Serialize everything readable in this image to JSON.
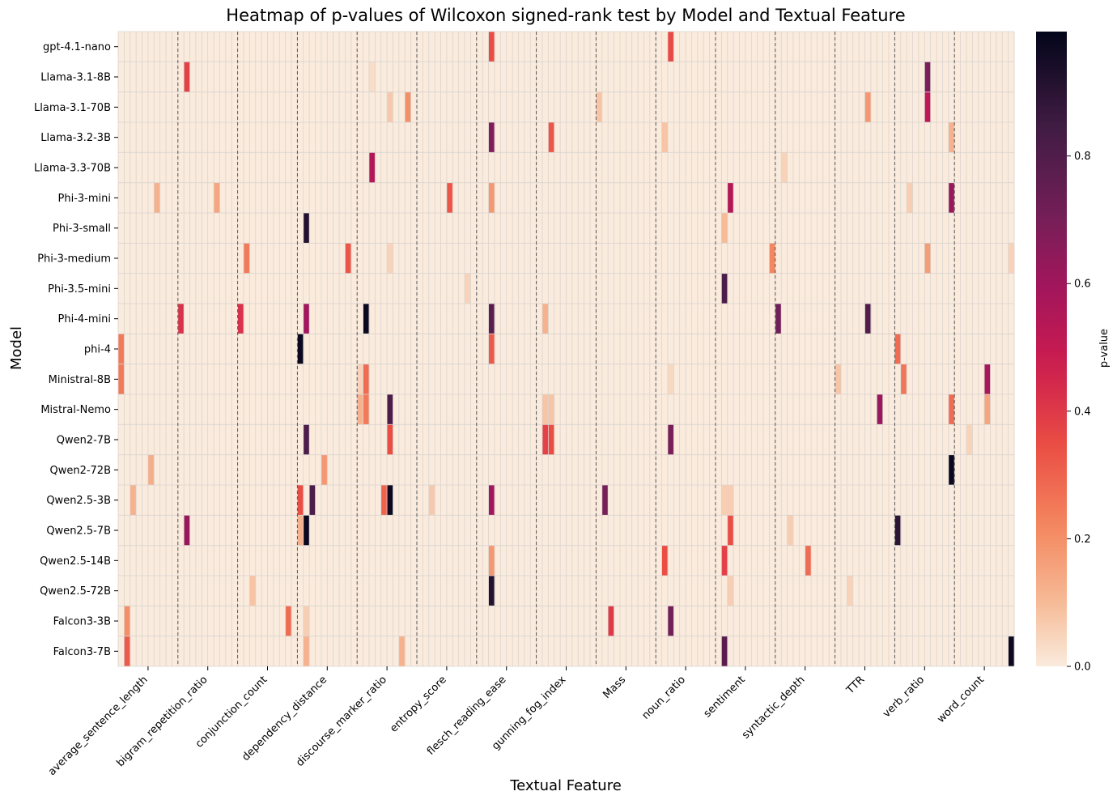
{
  "chart_data": {
    "type": "heatmap",
    "title": "Heatmap of p-values of Wilcoxon signed-rank test by Model and Textual Feature",
    "xlabel": "Textual Feature",
    "ylabel": "Model",
    "colorbar_label": "p-value",
    "colorbar_ticks": [
      0.0,
      0.2,
      0.4,
      0.6,
      0.8
    ],
    "colorbar_tick_labels": [
      "0.0",
      "0.2",
      "0.4",
      "0.6",
      "0.8"
    ],
    "value_range": [
      0,
      1
    ],
    "colormap": "rocket_r",
    "rows": [
      "gpt-4.1-nano",
      "Llama-3.1-8B",
      "Llama-3.1-70B",
      "Llama-3.2-3B",
      "Llama-3.3-70B",
      "Phi-3-mini",
      "Phi-3-small",
      "Phi-3-medium",
      "Phi-3.5-mini",
      "Phi-4-mini",
      "phi-4",
      "Ministral-8B",
      "Mistral-Nemo",
      "Qwen2-7B",
      "Qwen2-72B",
      "Qwen2.5-3B",
      "Qwen2.5-7B",
      "Qwen2.5-14B",
      "Qwen2.5-72B",
      "Falcon3-3B",
      "Falcon3-7B"
    ],
    "feature_groups": [
      "average_sentence_length",
      "bigram_repetition_ratio",
      "conjunction_count",
      "dependency_distance",
      "discourse_marker_ratio",
      "entropy_score",
      "flesch_reading_ease",
      "gunning_fog_index",
      "Mass",
      "noun_ratio",
      "sentiment",
      "syntactic_depth",
      "TTR",
      "verb_ratio",
      "word_count"
    ],
    "columns_per_group": 10,
    "grid": true,
    "group_separators": "dashed",
    "background_value": 0.0,
    "cells": [
      {
        "row": 0,
        "col": 62,
        "value": 0.35
      },
      {
        "row": 0,
        "col": 92,
        "value": 0.36
      },
      {
        "row": 1,
        "col": 11,
        "value": 0.38
      },
      {
        "row": 1,
        "col": 42,
        "value": 0.03
      },
      {
        "row": 1,
        "col": 135,
        "value": 0.7
      },
      {
        "row": 2,
        "col": 45,
        "value": 0.07
      },
      {
        "row": 2,
        "col": 48,
        "value": 0.2
      },
      {
        "row": 2,
        "col": 80,
        "value": 0.08
      },
      {
        "row": 2,
        "col": 125,
        "value": 0.18
      },
      {
        "row": 2,
        "col": 135,
        "value": 0.52
      },
      {
        "row": 3,
        "col": 62,
        "value": 0.68
      },
      {
        "row": 3,
        "col": 72,
        "value": 0.33
      },
      {
        "row": 3,
        "col": 91,
        "value": 0.08
      },
      {
        "row": 3,
        "col": 139,
        "value": 0.12
      },
      {
        "row": 4,
        "col": 42,
        "value": 0.55
      },
      {
        "row": 4,
        "col": 111,
        "value": 0.05
      },
      {
        "row": 5,
        "col": 6,
        "value": 0.12
      },
      {
        "row": 5,
        "col": 16,
        "value": 0.15
      },
      {
        "row": 5,
        "col": 55,
        "value": 0.33
      },
      {
        "row": 5,
        "col": 62,
        "value": 0.18
      },
      {
        "row": 5,
        "col": 102,
        "value": 0.55
      },
      {
        "row": 5,
        "col": 132,
        "value": 0.06
      },
      {
        "row": 5,
        "col": 139,
        "value": 0.62
      },
      {
        "row": 6,
        "col": 31,
        "value": 0.92
      },
      {
        "row": 6,
        "col": 101,
        "value": 0.1
      },
      {
        "row": 7,
        "col": 21,
        "value": 0.25
      },
      {
        "row": 7,
        "col": 38,
        "value": 0.33
      },
      {
        "row": 7,
        "col": 45,
        "value": 0.05
      },
      {
        "row": 7,
        "col": 109,
        "value": 0.22
      },
      {
        "row": 7,
        "col": 135,
        "value": 0.17
      },
      {
        "row": 7,
        "col": 149,
        "value": 0.05
      },
      {
        "row": 8,
        "col": 58,
        "value": 0.05
      },
      {
        "row": 8,
        "col": 101,
        "value": 0.82
      },
      {
        "row": 9,
        "col": 10,
        "value": 0.42
      },
      {
        "row": 9,
        "col": 20,
        "value": 0.42
      },
      {
        "row": 9,
        "col": 31,
        "value": 0.6
      },
      {
        "row": 9,
        "col": 41,
        "value": 0.98
      },
      {
        "row": 9,
        "col": 62,
        "value": 0.78
      },
      {
        "row": 9,
        "col": 71,
        "value": 0.12
      },
      {
        "row": 9,
        "col": 110,
        "value": 0.72
      },
      {
        "row": 9,
        "col": 125,
        "value": 0.8
      },
      {
        "row": 10,
        "col": 0,
        "value": 0.25
      },
      {
        "row": 10,
        "col": 30,
        "value": 0.98
      },
      {
        "row": 10,
        "col": 62,
        "value": 0.32
      },
      {
        "row": 10,
        "col": 130,
        "value": 0.28
      },
      {
        "row": 11,
        "col": 0,
        "value": 0.25
      },
      {
        "row": 11,
        "col": 40,
        "value": 0.05
      },
      {
        "row": 11,
        "col": 41,
        "value": 0.28
      },
      {
        "row": 11,
        "col": 92,
        "value": 0.04
      },
      {
        "row": 11,
        "col": 120,
        "value": 0.08
      },
      {
        "row": 11,
        "col": 131,
        "value": 0.26
      },
      {
        "row": 11,
        "col": 145,
        "value": 0.58
      },
      {
        "row": 12,
        "col": 40,
        "value": 0.12
      },
      {
        "row": 12,
        "col": 41,
        "value": 0.25
      },
      {
        "row": 12,
        "col": 45,
        "value": 0.82
      },
      {
        "row": 12,
        "col": 71,
        "value": 0.08
      },
      {
        "row": 12,
        "col": 72,
        "value": 0.08
      },
      {
        "row": 12,
        "col": 127,
        "value": 0.62
      },
      {
        "row": 12,
        "col": 139,
        "value": 0.28
      },
      {
        "row": 12,
        "col": 145,
        "value": 0.15
      },
      {
        "row": 13,
        "col": 31,
        "value": 0.82
      },
      {
        "row": 13,
        "col": 45,
        "value": 0.35
      },
      {
        "row": 13,
        "col": 71,
        "value": 0.38
      },
      {
        "row": 13,
        "col": 72,
        "value": 0.35
      },
      {
        "row": 13,
        "col": 92,
        "value": 0.7
      },
      {
        "row": 13,
        "col": 142,
        "value": 0.05
      },
      {
        "row": 14,
        "col": 5,
        "value": 0.13
      },
      {
        "row": 14,
        "col": 34,
        "value": 0.18
      },
      {
        "row": 14,
        "col": 139,
        "value": 0.98
      },
      {
        "row": 15,
        "col": 2,
        "value": 0.12
      },
      {
        "row": 15,
        "col": 30,
        "value": 0.35
      },
      {
        "row": 15,
        "col": 32,
        "value": 0.82
      },
      {
        "row": 15,
        "col": 44,
        "value": 0.3
      },
      {
        "row": 15,
        "col": 45,
        "value": 0.98
      },
      {
        "row": 15,
        "col": 52,
        "value": 0.07
      },
      {
        "row": 15,
        "col": 62,
        "value": 0.6
      },
      {
        "row": 15,
        "col": 81,
        "value": 0.7
      },
      {
        "row": 15,
        "col": 101,
        "value": 0.06
      },
      {
        "row": 15,
        "col": 102,
        "value": 0.06
      },
      {
        "row": 16,
        "col": 11,
        "value": 0.62
      },
      {
        "row": 16,
        "col": 30,
        "value": 0.12
      },
      {
        "row": 16,
        "col": 31,
        "value": 0.98
      },
      {
        "row": 16,
        "col": 102,
        "value": 0.35
      },
      {
        "row": 16,
        "col": 112,
        "value": 0.06
      },
      {
        "row": 16,
        "col": 130,
        "value": 0.9
      },
      {
        "row": 17,
        "col": 62,
        "value": 0.18
      },
      {
        "row": 17,
        "col": 91,
        "value": 0.35
      },
      {
        "row": 17,
        "col": 101,
        "value": 0.38
      },
      {
        "row": 17,
        "col": 115,
        "value": 0.28
      },
      {
        "row": 18,
        "col": 22,
        "value": 0.08
      },
      {
        "row": 18,
        "col": 62,
        "value": 0.92
      },
      {
        "row": 18,
        "col": 102,
        "value": 0.06
      },
      {
        "row": 18,
        "col": 122,
        "value": 0.05
      },
      {
        "row": 19,
        "col": 1,
        "value": 0.2
      },
      {
        "row": 19,
        "col": 28,
        "value": 0.28
      },
      {
        "row": 19,
        "col": 31,
        "value": 0.06
      },
      {
        "row": 19,
        "col": 82,
        "value": 0.4
      },
      {
        "row": 19,
        "col": 92,
        "value": 0.72
      },
      {
        "row": 20,
        "col": 1,
        "value": 0.32
      },
      {
        "row": 20,
        "col": 31,
        "value": 0.12
      },
      {
        "row": 20,
        "col": 47,
        "value": 0.12
      },
      {
        "row": 20,
        "col": 101,
        "value": 0.78
      },
      {
        "row": 20,
        "col": 149,
        "value": 0.98
      }
    ]
  }
}
